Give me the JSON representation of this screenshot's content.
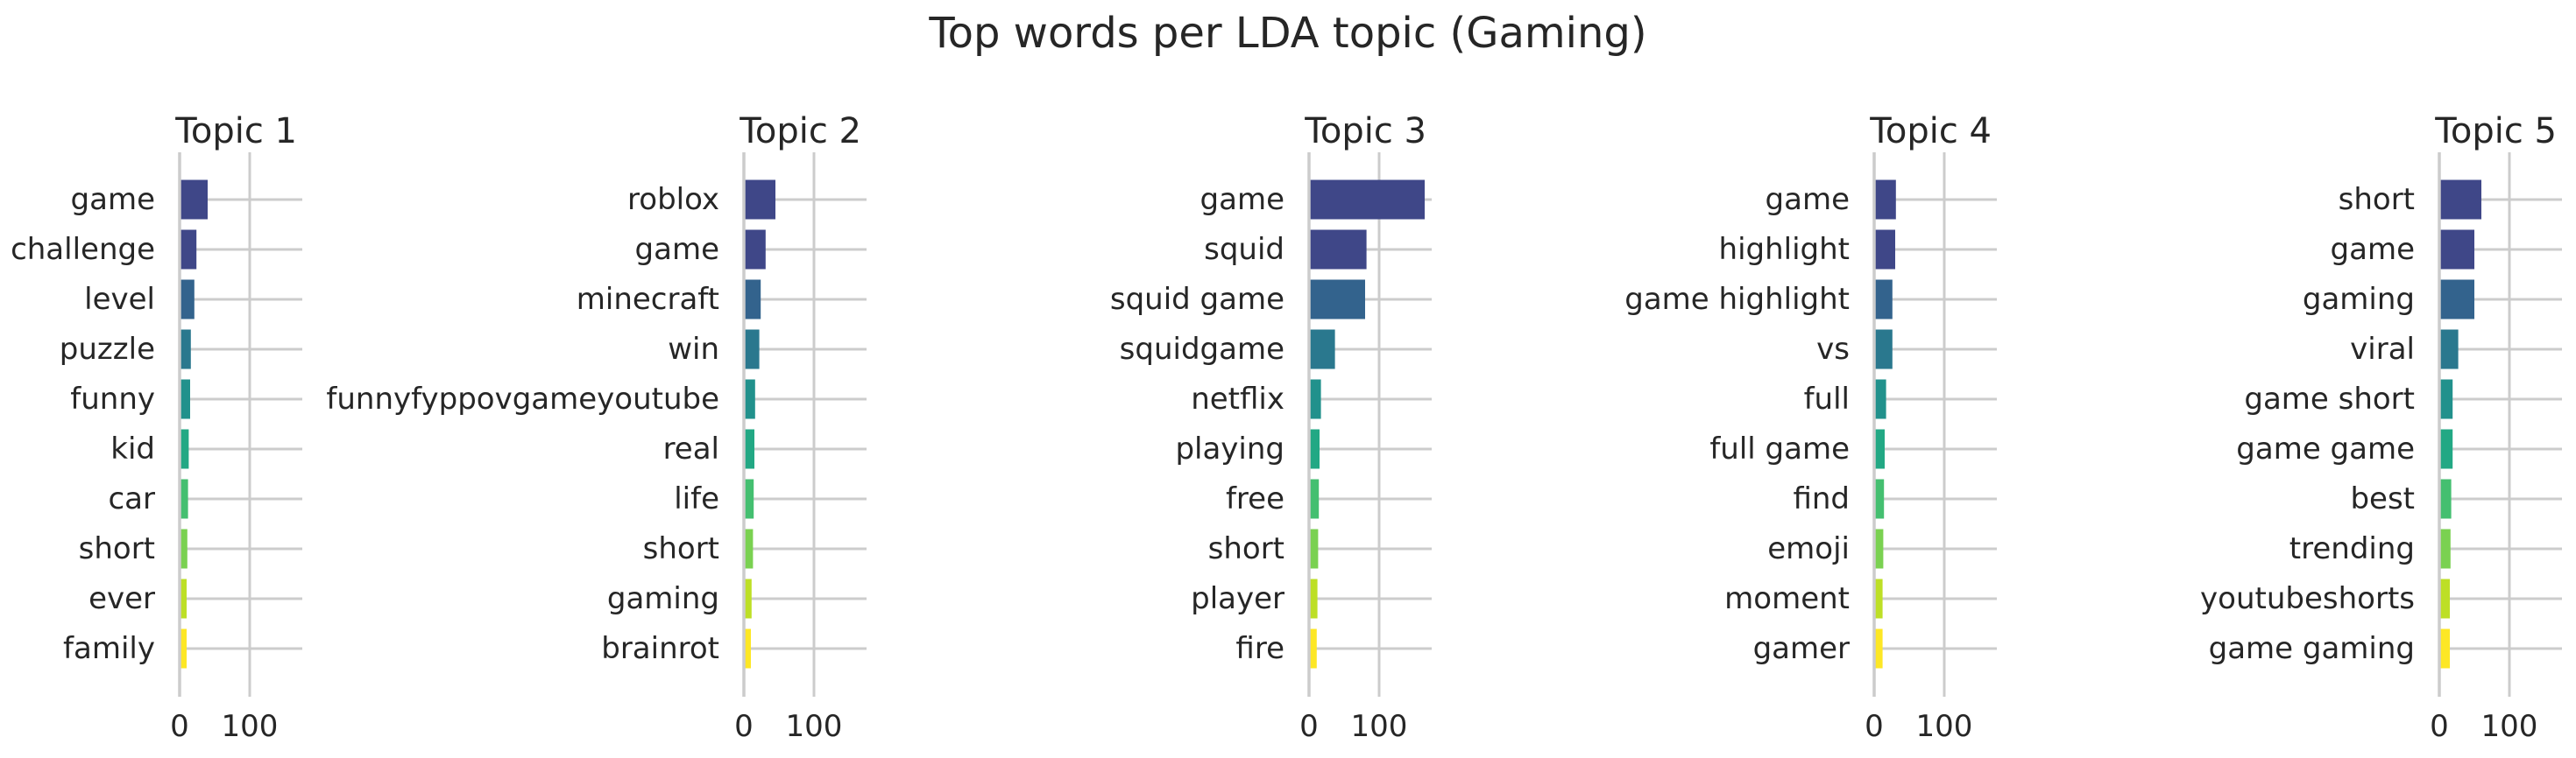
{
  "title": "Top words per LDA topic (Gaming)",
  "palette": [
    "#3f4788",
    "#3f4788",
    "#33638d",
    "#2a788e",
    "#21918c",
    "#22a884",
    "#44bf70",
    "#7ad151",
    "#bddf26",
    "#fde725"
  ],
  "chart_data": [
    {
      "type": "bar",
      "orientation": "horizontal",
      "title": "Topic 1",
      "categories": [
        "game",
        "challenge",
        "level",
        "puzzle",
        "funny",
        "kid",
        "car",
        "short",
        "ever",
        "family"
      ],
      "values": [
        40,
        24,
        21,
        16,
        15,
        13,
        12,
        11,
        10,
        10
      ],
      "xlim": [
        0,
        175
      ],
      "xticks": [
        0,
        100
      ],
      "grid": true
    },
    {
      "type": "bar",
      "orientation": "horizontal",
      "title": "Topic 2",
      "categories": [
        "roblox",
        "game",
        "minecraft",
        "win",
        "funnyfyppovgameyoutube",
        "real",
        "life",
        "short",
        "gaming",
        "brainrot"
      ],
      "values": [
        45,
        31,
        24,
        22,
        16,
        15,
        14,
        13,
        11,
        10
      ],
      "xlim": [
        0,
        175
      ],
      "xticks": [
        0,
        100
      ],
      "grid": true
    },
    {
      "type": "bar",
      "orientation": "horizontal",
      "title": "Topic 3",
      "categories": [
        "game",
        "squid",
        "squid game",
        "squidgame",
        "netflix",
        "playing",
        "free",
        "short",
        "player",
        "fire"
      ],
      "values": [
        165,
        82,
        80,
        37,
        17,
        15,
        14,
        13,
        12,
        11
      ],
      "xlim": [
        0,
        175
      ],
      "xticks": [
        0,
        100
      ],
      "grid": true
    },
    {
      "type": "bar",
      "orientation": "horizontal",
      "title": "Topic 4",
      "categories": [
        "game",
        "highlight",
        "game highlight",
        "vs",
        "full",
        "full game",
        "find",
        "emoji",
        "moment",
        "gamer"
      ],
      "values": [
        31,
        30,
        26,
        26,
        17,
        15,
        14,
        13,
        12,
        12
      ],
      "xlim": [
        0,
        175
      ],
      "xticks": [
        0,
        100
      ],
      "grid": true
    },
    {
      "type": "bar",
      "orientation": "horizontal",
      "title": "Topic 5",
      "categories": [
        "short",
        "game",
        "gaming",
        "viral",
        "game short",
        "game game",
        "best",
        "trending",
        "youtubeshorts",
        "game gaming"
      ],
      "values": [
        60,
        50,
        50,
        27,
        19,
        19,
        17,
        16,
        15,
        15
      ],
      "xlim": [
        0,
        175
      ],
      "xticks": [
        0,
        100
      ],
      "grid": true
    }
  ]
}
